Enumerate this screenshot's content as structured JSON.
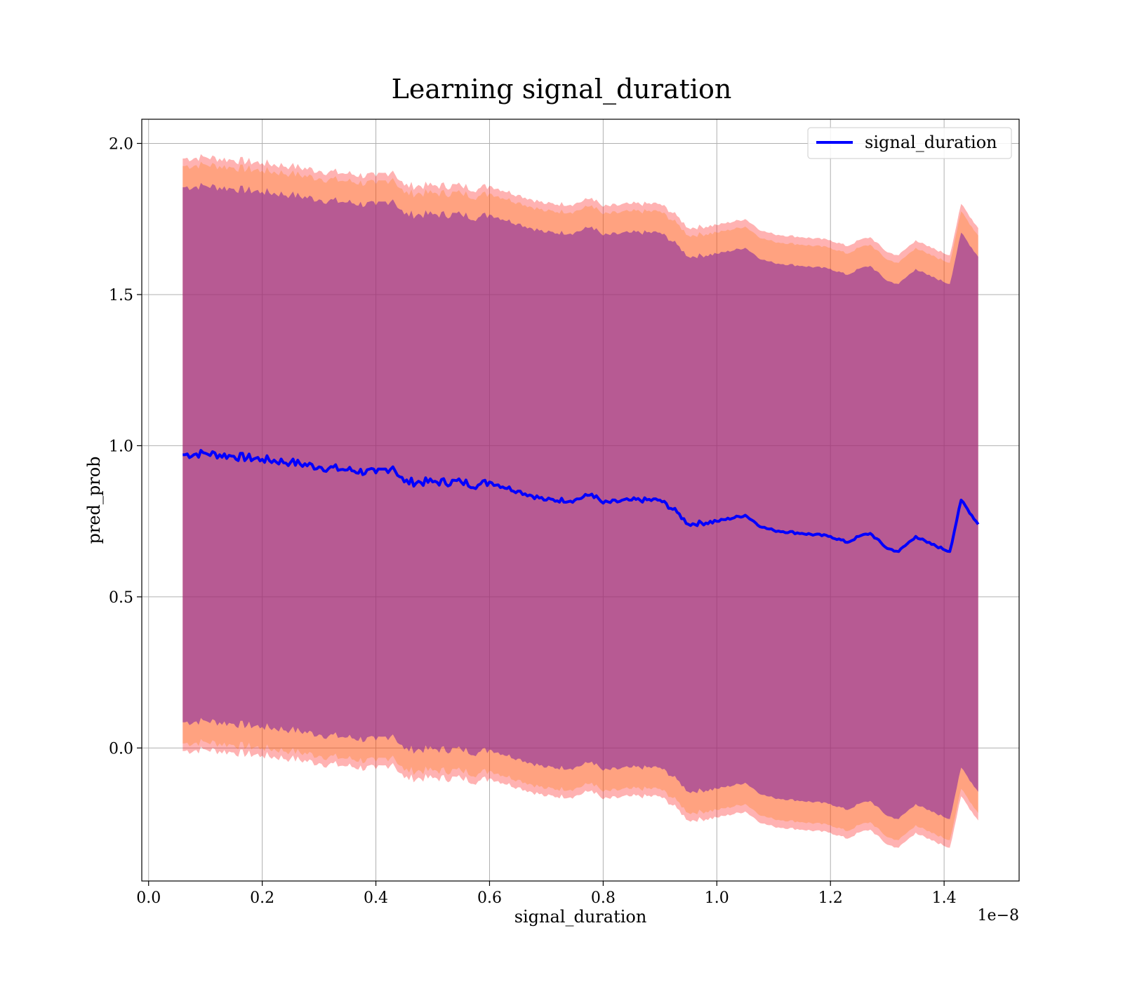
{
  "chart_data": {
    "type": "line",
    "title": "Learning signal_duration",
    "xlabel": "signal_duration",
    "ylabel": "pred_prob",
    "x_offset_label": "1e−8",
    "xlim": [
      -0.012,
      1.532
    ],
    "ylim": [
      -0.44,
      2.08
    ],
    "x_ticks": [
      0.0,
      0.2,
      0.4,
      0.6,
      0.8,
      1.0,
      1.2,
      1.4
    ],
    "x_tick_labels": [
      "0.0",
      "0.2",
      "0.4",
      "0.6",
      "0.8",
      "1.0",
      "1.2",
      "1.4"
    ],
    "y_ticks": [
      0.0,
      0.5,
      1.0,
      1.5,
      2.0
    ],
    "y_tick_labels": [
      "0.0",
      "0.5",
      "1.0",
      "1.5",
      "2.0"
    ],
    "grid": true,
    "legend_position": "top-right",
    "colors": {
      "line": "#0000ff",
      "band_outer": "#ff0000",
      "band_mid": "#ff7f0e",
      "band_inner": "#7b1fa2",
      "grid": "#b0b0b0"
    },
    "series": [
      {
        "name": "signal_duration",
        "x": [
          0.06,
          0.1,
          0.15,
          0.2,
          0.25,
          0.3,
          0.35,
          0.4,
          0.43,
          0.45,
          0.5,
          0.55,
          0.58,
          0.6,
          0.65,
          0.7,
          0.75,
          0.78,
          0.8,
          0.85,
          0.9,
          0.93,
          0.95,
          1.0,
          1.05,
          1.08,
          1.1,
          1.15,
          1.2,
          1.23,
          1.25,
          1.27,
          1.3,
          1.32,
          1.35,
          1.37,
          1.41,
          1.43,
          1.46
        ],
        "y": [
          0.97,
          0.975,
          0.965,
          0.955,
          0.945,
          0.93,
          0.92,
          0.91,
          0.93,
          0.88,
          0.88,
          0.88,
          0.87,
          0.88,
          0.85,
          0.82,
          0.82,
          0.84,
          0.81,
          0.82,
          0.82,
          0.78,
          0.74,
          0.75,
          0.77,
          0.73,
          0.72,
          0.71,
          0.7,
          0.68,
          0.7,
          0.71,
          0.66,
          0.65,
          0.7,
          0.68,
          0.65,
          0.82,
          0.74
        ]
      }
    ],
    "bands": {
      "outer_halfwidth": 0.98,
      "mid_halfwidth": 0.955,
      "inner_halfwidth": 0.885
    }
  }
}
